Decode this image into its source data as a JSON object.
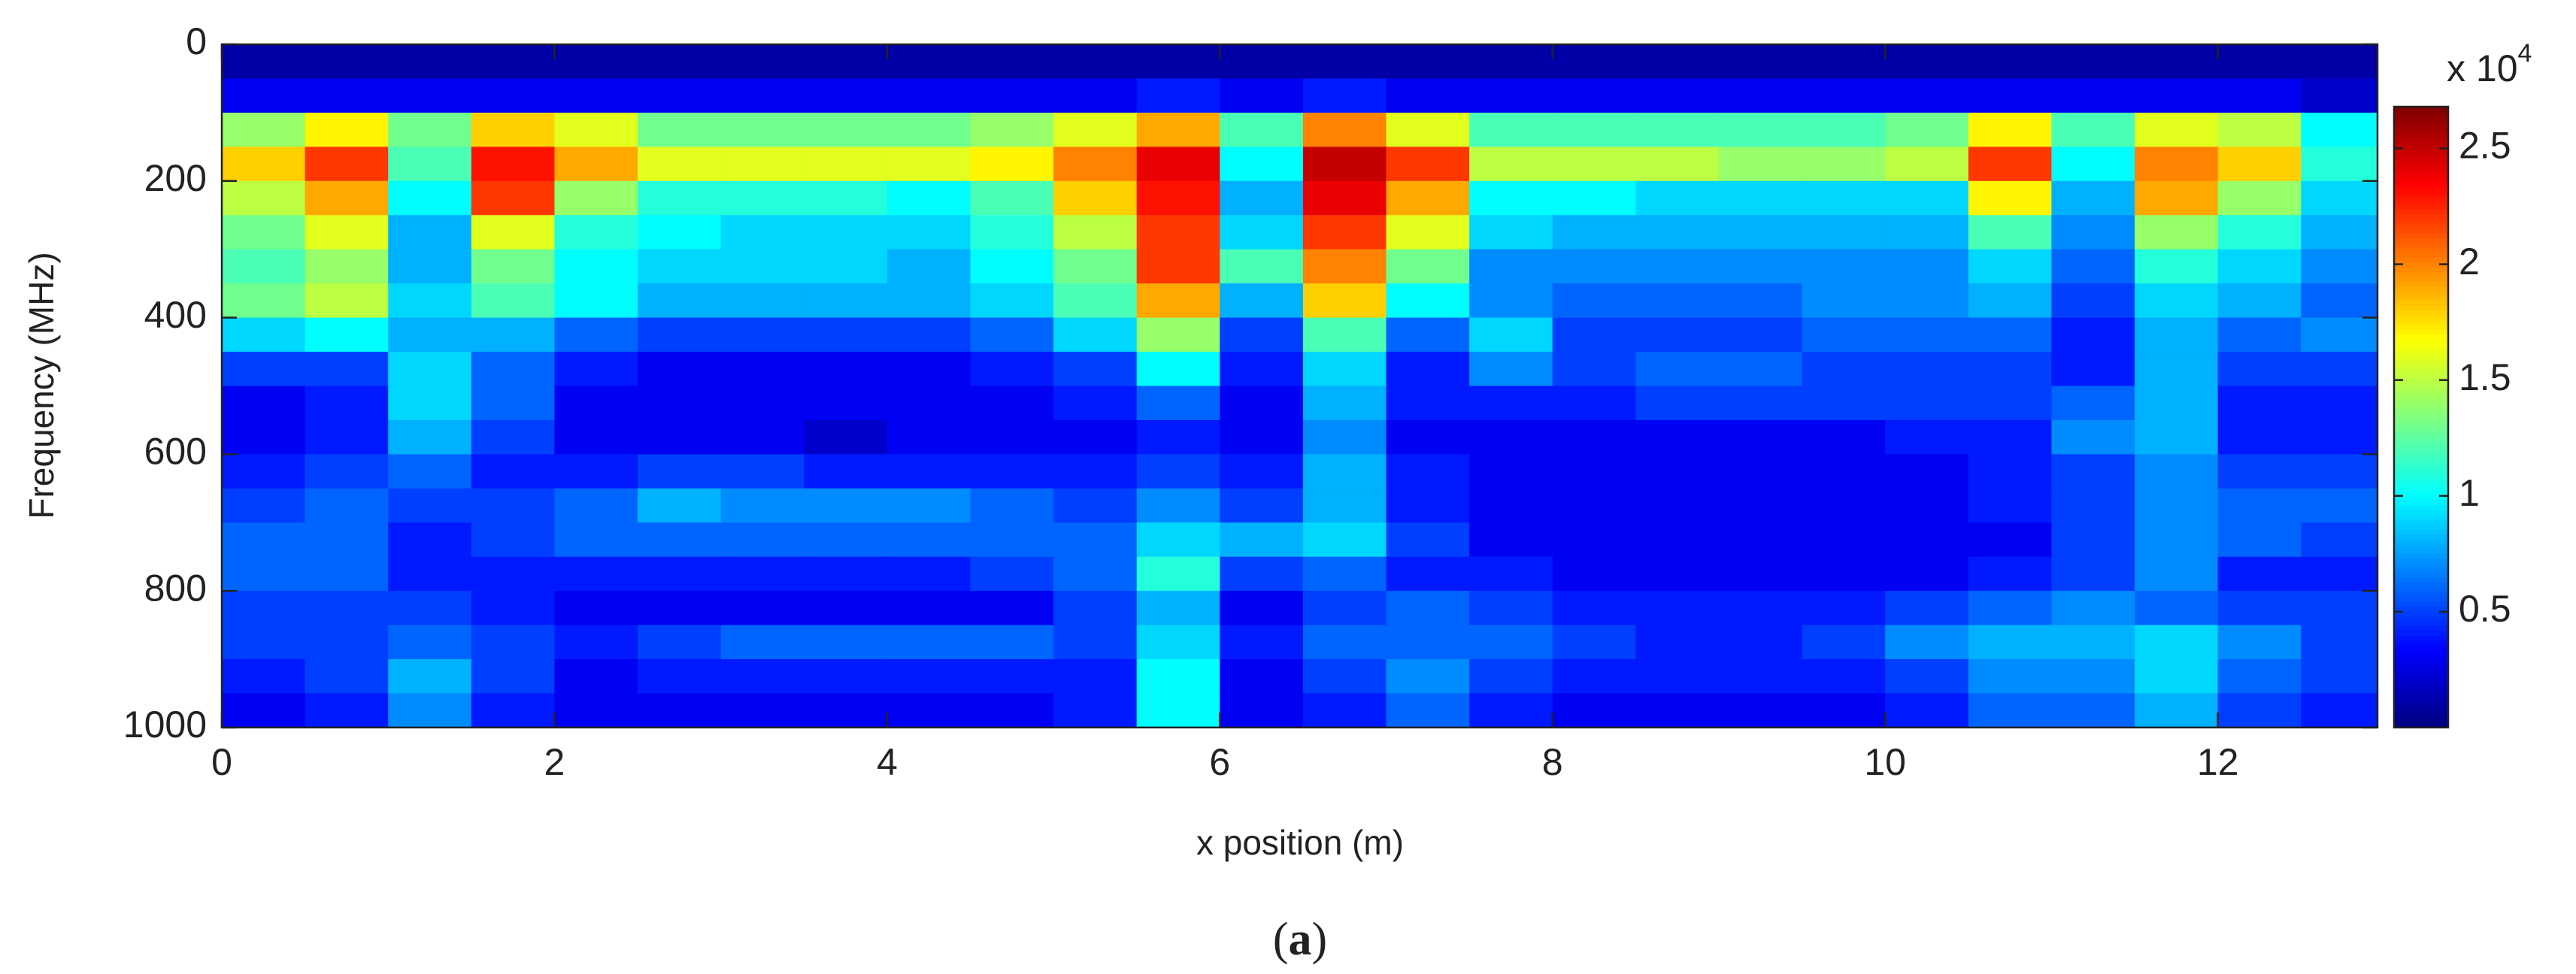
{
  "chart_data": {
    "type": "heatmap",
    "x_label": "x position (m)",
    "y_label": "Frequency (MHz)",
    "caption_open": "(",
    "caption_letter": "a",
    "caption_close": ")",
    "colorbar_multiplier": "x 10",
    "colorbar_exponent": "4",
    "xlim": [
      0,
      12.96
    ],
    "ylim": [
      0,
      1000
    ],
    "y_inverted": true,
    "xticks": [
      0,
      2,
      4,
      6,
      8,
      10,
      12
    ],
    "yticks": [
      0,
      200,
      400,
      600,
      800,
      1000
    ],
    "clim": [
      0,
      2.68
    ],
    "cticks": [
      0.5,
      1,
      1.5,
      2,
      2.5
    ],
    "colormap": "jet",
    "x": [
      0.25,
      0.75,
      1.25,
      1.75,
      2.25,
      2.75,
      3.25,
      3.75,
      4.25,
      4.75,
      5.25,
      5.75,
      6.25,
      6.75,
      7.25,
      7.75,
      8.25,
      8.75,
      9.25,
      9.75,
      10.25,
      10.75,
      11.25,
      11.75,
      12.25,
      12.75
    ],
    "y": [
      25,
      75,
      125,
      175,
      225,
      275,
      325,
      375,
      425,
      475,
      525,
      575,
      625,
      675,
      725,
      775,
      825,
      875,
      925,
      975
    ],
    "z": [
      [
        0.1,
        0.1,
        0.1,
        0.1,
        0.1,
        0.1,
        0.1,
        0.1,
        0.1,
        0.1,
        0.1,
        0.1,
        0.1,
        0.1,
        0.1,
        0.1,
        0.1,
        0.1,
        0.1,
        0.1,
        0.1,
        0.1,
        0.1,
        0.1,
        0.1,
        0.1
      ],
      [
        0.3,
        0.3,
        0.3,
        0.3,
        0.3,
        0.3,
        0.3,
        0.3,
        0.3,
        0.3,
        0.3,
        0.4,
        0.3,
        0.4,
        0.3,
        0.3,
        0.3,
        0.3,
        0.3,
        0.3,
        0.3,
        0.3,
        0.3,
        0.3,
        0.3,
        0.2
      ],
      [
        1.4,
        1.7,
        1.3,
        1.8,
        1.6,
        1.3,
        1.3,
        1.3,
        1.3,
        1.4,
        1.6,
        1.9,
        1.2,
        2.0,
        1.6,
        1.2,
        1.2,
        1.2,
        1.2,
        1.2,
        1.3,
        1.7,
        1.2,
        1.6,
        1.5,
        1.0
      ],
      [
        1.8,
        2.2,
        1.2,
        2.3,
        1.9,
        1.6,
        1.6,
        1.6,
        1.6,
        1.7,
        2.0,
        2.4,
        1.0,
        2.5,
        2.2,
        1.5,
        1.5,
        1.5,
        1.4,
        1.4,
        1.5,
        2.2,
        1.0,
        2.0,
        1.8,
        1.1
      ],
      [
        1.5,
        1.9,
        1.0,
        2.2,
        1.4,
        1.1,
        1.1,
        1.1,
        1.0,
        1.2,
        1.8,
        2.3,
        0.8,
        2.4,
        1.9,
        1.0,
        1.0,
        0.9,
        0.9,
        0.9,
        0.9,
        1.7,
        0.8,
        1.9,
        1.4,
        0.9
      ],
      [
        1.3,
        1.6,
        0.8,
        1.6,
        1.1,
        1.0,
        0.9,
        0.9,
        0.9,
        1.1,
        1.5,
        2.2,
        0.9,
        2.2,
        1.6,
        0.9,
        0.8,
        0.8,
        0.8,
        0.8,
        0.8,
        1.2,
        0.7,
        1.4,
        1.1,
        0.8
      ],
      [
        1.2,
        1.4,
        0.8,
        1.3,
        1.0,
        0.9,
        0.9,
        0.9,
        0.8,
        1.0,
        1.3,
        2.2,
        1.2,
        2.0,
        1.3,
        0.7,
        0.7,
        0.7,
        0.7,
        0.7,
        0.7,
        0.9,
        0.6,
        1.1,
        0.9,
        0.7
      ],
      [
        1.3,
        1.5,
        0.9,
        1.2,
        1.0,
        0.8,
        0.8,
        0.8,
        0.8,
        0.9,
        1.2,
        1.9,
        0.8,
        1.8,
        1.0,
        0.7,
        0.6,
        0.6,
        0.6,
        0.7,
        0.7,
        0.8,
        0.5,
        0.9,
        0.8,
        0.6
      ],
      [
        0.9,
        1.0,
        0.8,
        0.8,
        0.6,
        0.5,
        0.5,
        0.5,
        0.5,
        0.6,
        0.9,
        1.4,
        0.5,
        1.2,
        0.6,
        0.9,
        0.5,
        0.5,
        0.5,
        0.6,
        0.6,
        0.6,
        0.4,
        0.8,
        0.6,
        0.7
      ],
      [
        0.5,
        0.5,
        0.9,
        0.6,
        0.4,
        0.3,
        0.3,
        0.3,
        0.3,
        0.4,
        0.5,
        1.0,
        0.4,
        0.9,
        0.4,
        0.7,
        0.5,
        0.6,
        0.6,
        0.5,
        0.5,
        0.5,
        0.4,
        0.8,
        0.5,
        0.5
      ],
      [
        0.3,
        0.4,
        0.9,
        0.6,
        0.3,
        0.3,
        0.3,
        0.3,
        0.3,
        0.3,
        0.4,
        0.6,
        0.3,
        0.8,
        0.4,
        0.4,
        0.4,
        0.5,
        0.5,
        0.5,
        0.5,
        0.5,
        0.6,
        0.8,
        0.4,
        0.4
      ],
      [
        0.3,
        0.4,
        0.8,
        0.5,
        0.3,
        0.3,
        0.3,
        0.2,
        0.3,
        0.3,
        0.3,
        0.4,
        0.3,
        0.7,
        0.3,
        0.3,
        0.3,
        0.3,
        0.3,
        0.3,
        0.4,
        0.4,
        0.7,
        0.8,
        0.4,
        0.4
      ],
      [
        0.4,
        0.5,
        0.6,
        0.4,
        0.4,
        0.5,
        0.5,
        0.4,
        0.4,
        0.4,
        0.4,
        0.5,
        0.4,
        0.8,
        0.4,
        0.3,
        0.3,
        0.3,
        0.3,
        0.3,
        0.3,
        0.4,
        0.5,
        0.7,
        0.5,
        0.5
      ],
      [
        0.5,
        0.6,
        0.5,
        0.5,
        0.6,
        0.8,
        0.7,
        0.7,
        0.7,
        0.6,
        0.5,
        0.7,
        0.5,
        0.8,
        0.4,
        0.3,
        0.3,
        0.3,
        0.3,
        0.3,
        0.3,
        0.4,
        0.5,
        0.7,
        0.6,
        0.6
      ],
      [
        0.6,
        0.6,
        0.4,
        0.5,
        0.6,
        0.6,
        0.6,
        0.6,
        0.6,
        0.6,
        0.6,
        0.9,
        0.8,
        0.9,
        0.5,
        0.3,
        0.3,
        0.3,
        0.3,
        0.3,
        0.3,
        0.3,
        0.5,
        0.7,
        0.6,
        0.5
      ],
      [
        0.6,
        0.6,
        0.4,
        0.4,
        0.4,
        0.4,
        0.4,
        0.4,
        0.4,
        0.5,
        0.6,
        1.1,
        0.5,
        0.6,
        0.4,
        0.4,
        0.3,
        0.3,
        0.3,
        0.3,
        0.3,
        0.4,
        0.5,
        0.7,
        0.4,
        0.4
      ],
      [
        0.5,
        0.5,
        0.5,
        0.4,
        0.3,
        0.3,
        0.3,
        0.3,
        0.3,
        0.3,
        0.5,
        0.8,
        0.3,
        0.5,
        0.6,
        0.5,
        0.4,
        0.4,
        0.4,
        0.4,
        0.5,
        0.6,
        0.7,
        0.6,
        0.5,
        0.5
      ],
      [
        0.5,
        0.5,
        0.6,
        0.5,
        0.4,
        0.5,
        0.6,
        0.6,
        0.6,
        0.6,
        0.5,
        0.9,
        0.4,
        0.6,
        0.6,
        0.6,
        0.5,
        0.4,
        0.4,
        0.5,
        0.7,
        0.8,
        0.8,
        0.9,
        0.7,
        0.5
      ],
      [
        0.4,
        0.5,
        0.8,
        0.5,
        0.3,
        0.4,
        0.4,
        0.4,
        0.4,
        0.4,
        0.4,
        1.0,
        0.3,
        0.5,
        0.7,
        0.5,
        0.4,
        0.4,
        0.4,
        0.4,
        0.5,
        0.7,
        0.7,
        0.9,
        0.6,
        0.5
      ],
      [
        0.3,
        0.4,
        0.7,
        0.4,
        0.3,
        0.3,
        0.3,
        0.3,
        0.3,
        0.3,
        0.4,
        1.0,
        0.3,
        0.4,
        0.6,
        0.4,
        0.3,
        0.3,
        0.3,
        0.3,
        0.4,
        0.6,
        0.6,
        0.8,
        0.5,
        0.4
      ]
    ]
  }
}
